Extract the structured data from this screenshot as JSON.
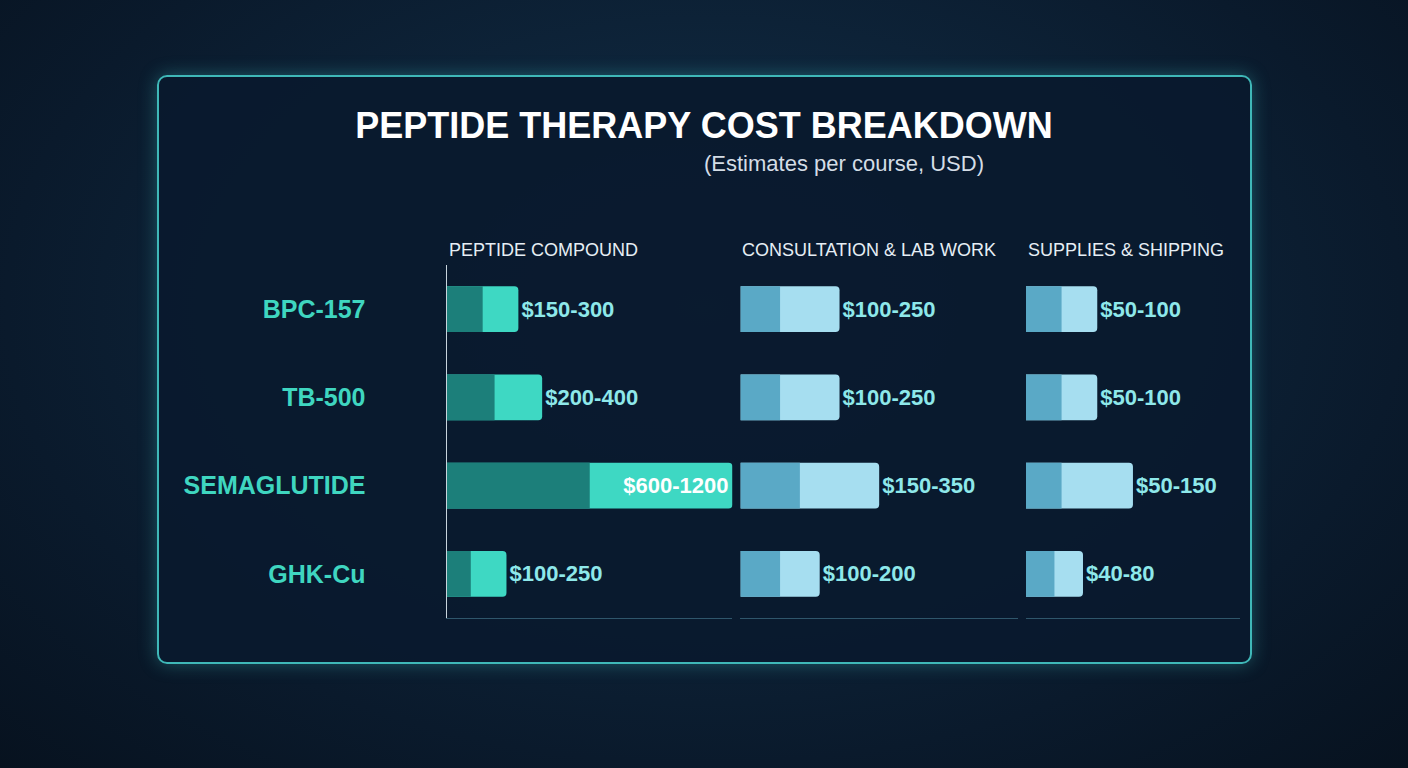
{
  "title": "PEPTIDE THERAPY COST BREAKDOWN",
  "subtitle": "(Estimates per course, USD)",
  "chart_data": [
    {
      "type": "bar",
      "title": "PEPTIDE COMPOUND",
      "orientation": "horizontal",
      "categories": [
        "BPC-157",
        "TB-500",
        "SEMAGLUTIDE",
        "GHK-Cu"
      ],
      "values": [
        150,
        200,
        600,
        100
      ],
      "high": [
        300,
        400,
        1200,
        250
      ],
      "value_labels": [
        "$150-300",
        "$200-400",
        "$600-1200",
        "$100-250"
      ],
      "color": "#3ed8c3",
      "xlim": [
        0,
        1200
      ],
      "tick_labels": "y",
      "data_labels": true
    },
    {
      "type": "bar",
      "title": "CONSULTATION & LAB WORK",
      "orientation": "horizontal",
      "categories": [
        "BPC-157",
        "TB-500",
        "SEMAGLUTIDE",
        "GHK-Cu"
      ],
      "values": [
        100,
        100,
        150,
        100
      ],
      "high": [
        250,
        250,
        350,
        200
      ],
      "value_labels": [
        "$100-250",
        "$100-250",
        "$150-350",
        "$100-200"
      ],
      "color": "#a6def0",
      "xlim": [
        0,
        700
      ],
      "tick_labels": false,
      "data_labels": true
    },
    {
      "type": "bar",
      "title": "SUPPLIES & SHIPPING",
      "orientation": "horizontal",
      "categories": [
        "BPC-157",
        "TB-500",
        "SEMAGLUTIDE",
        "GHK-Cu"
      ],
      "values": [
        50,
        50,
        50,
        40
      ],
      "high": [
        100,
        100,
        150,
        80
      ],
      "value_labels": [
        "$50-100",
        "$50-100",
        "$50-150",
        "$40-80"
      ],
      "color": "#a6def0",
      "xlim": [
        0,
        300
      ],
      "tick_labels": false,
      "data_labels": true
    }
  ]
}
